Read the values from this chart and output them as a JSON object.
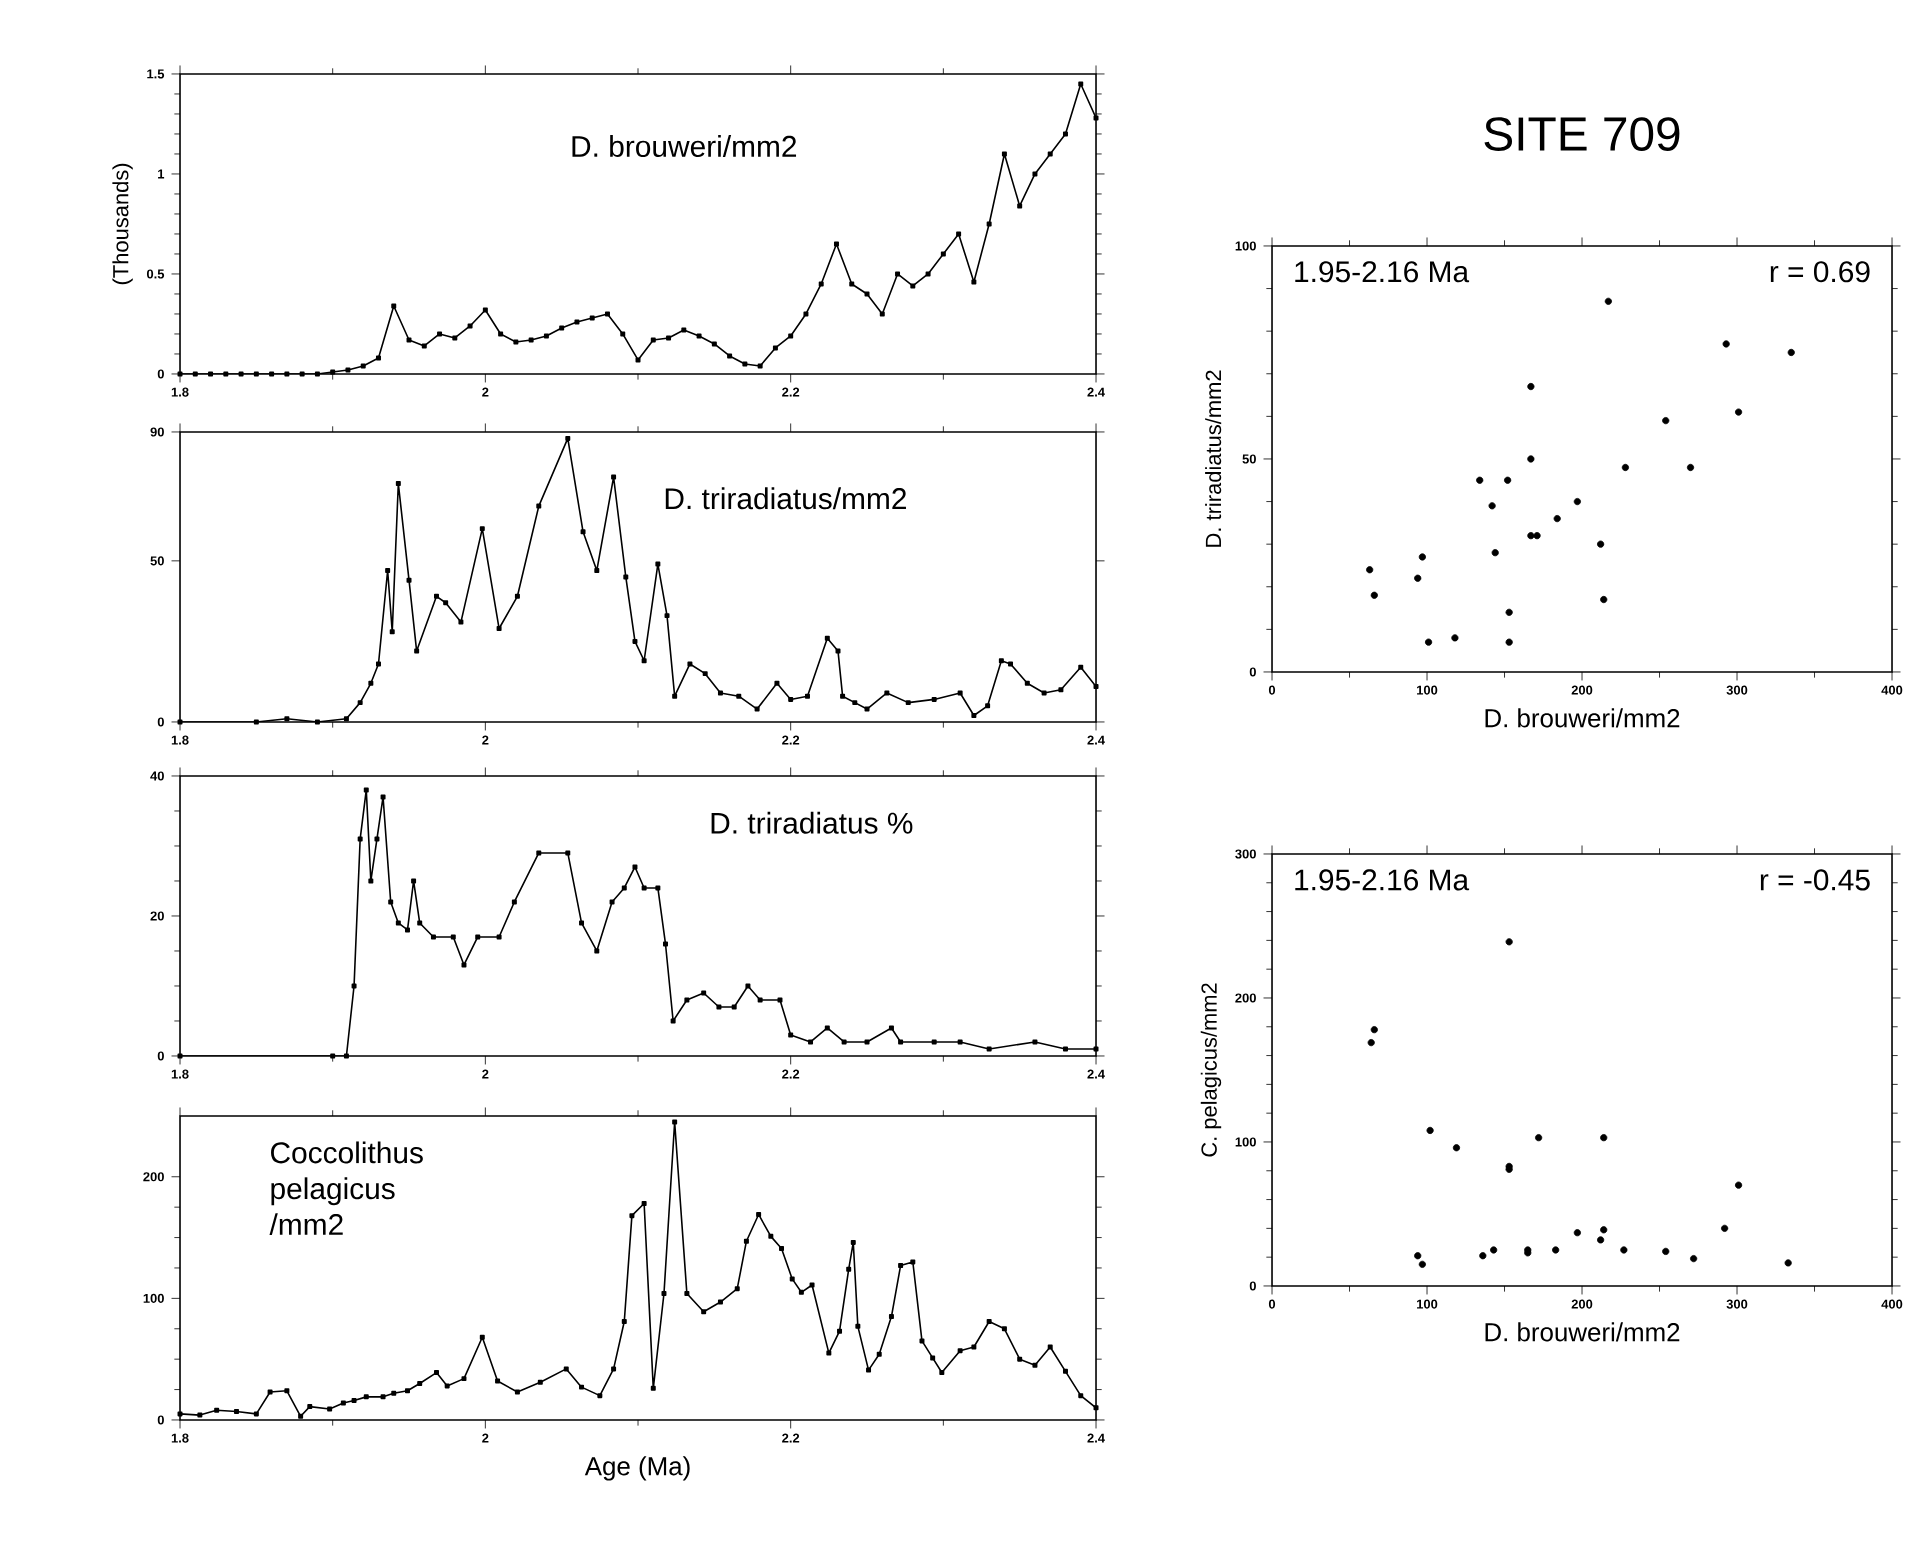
{
  "chart_data": [
    {
      "type": "line",
      "title": "D. brouweri/mm2",
      "ylabel": "(Thousands)",
      "color": "#000000",
      "marker": "square",
      "x": [
        1.8,
        1.81,
        1.82,
        1.83,
        1.84,
        1.85,
        1.86,
        1.87,
        1.88,
        1.89,
        1.9,
        1.91,
        1.92,
        1.93,
        1.94,
        1.95,
        1.96,
        1.97,
        1.98,
        1.99,
        2.0,
        2.01,
        2.02,
        2.03,
        2.04,
        2.05,
        2.06,
        2.07,
        2.08,
        2.09,
        2.1,
        2.11,
        2.12,
        2.13,
        2.14,
        2.15,
        2.16,
        2.17,
        2.18,
        2.19,
        2.2,
        2.21,
        2.22,
        2.23,
        2.24,
        2.25,
        2.26,
        2.27,
        2.28,
        2.29,
        2.3,
        2.31,
        2.32,
        2.33,
        2.34,
        2.35,
        2.36,
        2.37,
        2.38,
        2.39,
        2.4
      ],
      "values": [
        0,
        0,
        0,
        0,
        0,
        0,
        0,
        0,
        0,
        0,
        0.01,
        0.02,
        0.04,
        0.08,
        0.34,
        0.17,
        0.14,
        0.2,
        0.18,
        0.24,
        0.32,
        0.2,
        0.16,
        0.17,
        0.19,
        0.23,
        0.26,
        0.28,
        0.3,
        0.2,
        0.07,
        0.17,
        0.18,
        0.22,
        0.19,
        0.15,
        0.09,
        0.05,
        0.04,
        0.13,
        0.19,
        0.3,
        0.45,
        0.65,
        0.45,
        0.4,
        0.3,
        0.5,
        0.44,
        0.5,
        0.6,
        0.7,
        0.46,
        0.75,
        1.1,
        0.84,
        1.0,
        1.1,
        1.2,
        1.45,
        1.28
      ],
      "xlim": [
        1.8,
        2.4
      ],
      "ylim": [
        0,
        1.5
      ],
      "xticks": [
        1.8,
        2,
        2.2,
        2.4
      ],
      "yticks": [
        0,
        0.5,
        1,
        1.5
      ]
    },
    {
      "type": "line",
      "title": "D. triradiatus/mm2",
      "color": "#000000",
      "marker": "square",
      "x": [
        1.8,
        1.85,
        1.87,
        1.89,
        1.909,
        1.918,
        1.925,
        1.93,
        1.936,
        1.939,
        1.943,
        1.95,
        1.955,
        1.968,
        1.974,
        1.984,
        1.998,
        2.009,
        2.021,
        2.035,
        2.054,
        2.064,
        2.073,
        2.084,
        2.092,
        2.098,
        2.104,
        2.113,
        2.119,
        2.124,
        2.134,
        2.144,
        2.154,
        2.166,
        2.178,
        2.191,
        2.2,
        2.211,
        2.224,
        2.231,
        2.234,
        2.242,
        2.25,
        2.263,
        2.277,
        2.294,
        2.311,
        2.32,
        2.329,
        2.338,
        2.344,
        2.355,
        2.366,
        2.377,
        2.39,
        2.4
      ],
      "values": [
        0,
        0,
        1,
        0,
        1,
        6,
        12,
        18,
        47,
        28,
        74,
        44,
        22,
        39,
        37,
        31,
        60,
        29,
        39,
        67,
        88,
        59,
        47,
        76,
        45,
        25,
        19,
        49,
        33,
        8,
        18,
        15,
        9,
        8,
        4,
        12,
        7,
        8,
        26,
        22,
        8,
        6,
        4,
        9,
        6,
        7,
        9,
        2,
        5,
        19,
        18,
        12,
        9,
        10,
        17,
        11
      ],
      "xlim": [
        1.8,
        2.4
      ],
      "ylim": [
        0,
        90
      ],
      "xticks": [
        1.8,
        2,
        2.2,
        2.4
      ],
      "yticks": [
        0,
        50,
        90
      ]
    },
    {
      "type": "line",
      "title": "D. triradiatus %",
      "color": "#000000",
      "marker": "square",
      "x": [
        1.8,
        1.9,
        1.909,
        1.914,
        1.918,
        1.922,
        1.925,
        1.929,
        1.933,
        1.938,
        1.943,
        1.949,
        1.953,
        1.957,
        1.966,
        1.979,
        1.986,
        1.995,
        2.009,
        2.019,
        2.035,
        2.054,
        2.063,
        2.073,
        2.083,
        2.091,
        2.098,
        2.104,
        2.113,
        2.118,
        2.123,
        2.132,
        2.143,
        2.153,
        2.163,
        2.172,
        2.18,
        2.193,
        2.2,
        2.213,
        2.224,
        2.235,
        2.25,
        2.266,
        2.272,
        2.294,
        2.311,
        2.33,
        2.36,
        2.38,
        2.4
      ],
      "values": [
        0,
        0,
        0,
        10,
        31,
        38,
        25,
        31,
        37,
        22,
        19,
        18,
        25,
        19,
        17,
        17,
        13,
        17,
        17,
        22,
        29,
        29,
        19,
        15,
        22,
        24,
        27,
        24,
        24,
        16,
        5,
        8,
        9,
        7,
        7,
        10,
        8,
        8,
        3,
        2,
        4,
        2,
        2,
        4,
        2,
        2,
        2,
        1,
        2,
        1,
        1
      ],
      "xlim": [
        1.8,
        2.4
      ],
      "ylim": [
        0,
        40
      ],
      "xticks": [
        1.8,
        2,
        2.2,
        2.4
      ],
      "yticks": [
        0,
        20,
        40
      ]
    },
    {
      "type": "line",
      "title": "Coccolithus pelagicus /mm2",
      "xlabel": "Age (Ma)",
      "color": "#000000",
      "marker": "square",
      "x": [
        1.8,
        1.813,
        1.824,
        1.837,
        1.85,
        1.859,
        1.87,
        1.879,
        1.885,
        1.898,
        1.907,
        1.914,
        1.922,
        1.933,
        1.94,
        1.949,
        1.957,
        1.968,
        1.975,
        1.986,
        1.998,
        2.008,
        2.021,
        2.036,
        2.053,
        2.063,
        2.075,
        2.084,
        2.091,
        2.096,
        2.104,
        2.11,
        2.117,
        2.124,
        2.132,
        2.143,
        2.154,
        2.165,
        2.171,
        2.179,
        2.187,
        2.194,
        2.201,
        2.207,
        2.214,
        2.225,
        2.232,
        2.238,
        2.241,
        2.244,
        2.251,
        2.258,
        2.266,
        2.272,
        2.28,
        2.286,
        2.293,
        2.299,
        2.311,
        2.32,
        2.33,
        2.34,
        2.35,
        2.36,
        2.37,
        2.38,
        2.39,
        2.4
      ],
      "values": [
        5,
        4,
        8,
        7,
        5,
        23,
        24,
        3,
        11,
        9,
        14,
        16,
        19,
        19,
        22,
        24,
        30,
        39,
        28,
        34,
        68,
        32,
        23,
        31,
        42,
        27,
        20,
        42,
        81,
        168,
        178,
        26,
        104,
        245,
        104,
        89,
        97,
        108,
        147,
        169,
        151,
        141,
        116,
        105,
        111,
        55,
        73,
        124,
        146,
        77,
        41,
        54,
        85,
        127,
        130,
        65,
        51,
        39,
        57,
        60,
        81,
        75,
        50,
        45,
        60,
        40,
        20,
        10
      ],
      "xlim": [
        1.8,
        2.4
      ],
      "ylim": [
        0,
        250
      ],
      "xticks": [
        1.8,
        2,
        2.2,
        2.4
      ],
      "yticks": [
        0,
        100,
        200
      ]
    },
    {
      "type": "scatter",
      "title": "SITE 709",
      "xlabel": "D. brouweri/mm2",
      "ylabel": "D. triradiatus/mm2",
      "annotations": [
        "1.95-2.16 Ma",
        "r = 0.69"
      ],
      "color": "#000000",
      "marker": "circle",
      "x": [
        217,
        293,
        335,
        167,
        301,
        254,
        167,
        228,
        270,
        134,
        152,
        142,
        197,
        184,
        167,
        171,
        212,
        144,
        97,
        94,
        63,
        66,
        214,
        153,
        101,
        118,
        153
      ],
      "values": [
        87,
        77,
        75,
        67,
        61,
        59,
        50,
        48,
        48,
        45,
        45,
        39,
        40,
        36,
        32,
        32,
        30,
        28,
        27,
        22,
        24,
        18,
        17,
        14,
        7,
        8,
        7
      ],
      "xlim": [
        0,
        400
      ],
      "ylim": [
        0,
        100
      ],
      "xticks": [
        0,
        100,
        200,
        300,
        400
      ],
      "yticks": [
        0,
        50,
        100
      ]
    },
    {
      "type": "scatter",
      "xlabel": "D. brouweri/mm2",
      "ylabel": "C. pelagicus/mm2",
      "annotations": [
        "1.95-2.16 Ma",
        "r = -0.45"
      ],
      "color": "#000000",
      "marker": "circle",
      "x": [
        153,
        64,
        66,
        102,
        119,
        172,
        214,
        153,
        153,
        301,
        292,
        197,
        214,
        212,
        227,
        165,
        165,
        183,
        143,
        136,
        254,
        272,
        333,
        94,
        97
      ],
      "values": [
        239,
        169,
        178,
        108,
        96,
        103,
        103,
        83,
        81,
        70,
        40,
        37,
        39,
        32,
        25,
        25,
        23,
        25,
        25,
        21,
        24,
        19,
        16,
        21,
        15
      ],
      "xlim": [
        0,
        400
      ],
      "ylim": [
        0,
        300
      ],
      "xticks": [
        0,
        100,
        200,
        300,
        400
      ],
      "yticks": [
        0,
        100,
        200,
        300
      ]
    }
  ]
}
